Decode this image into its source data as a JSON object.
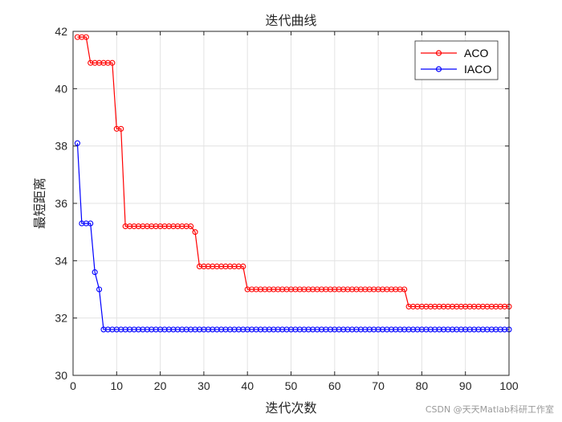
{
  "chart_data": {
    "type": "line",
    "title": "迭代曲线",
    "xlabel": "迭代次数",
    "ylabel": "最短距离",
    "xlim": [
      0,
      100
    ],
    "ylim": [
      30,
      42
    ],
    "xticks": [
      0,
      10,
      20,
      30,
      40,
      50,
      60,
      70,
      80,
      90,
      100
    ],
    "yticks": [
      30,
      32,
      34,
      36,
      38,
      40,
      42
    ],
    "grid": true,
    "legend_position": "top-right",
    "marker": "circle",
    "series": [
      {
        "name": "ACO",
        "color": "#ff0000",
        "segments": [
          {
            "from": 1,
            "to": 3,
            "y": 41.8
          },
          {
            "from": 4,
            "to": 9,
            "y": 40.9
          },
          {
            "from": 10,
            "to": 11,
            "y": 38.6
          },
          {
            "from": 12,
            "to": 27,
            "y": 35.2
          },
          {
            "from": 28,
            "to": 28,
            "y": 35.0
          },
          {
            "from": 29,
            "to": 39,
            "y": 33.8
          },
          {
            "from": 40,
            "to": 76,
            "y": 33.0
          },
          {
            "from": 77,
            "to": 100,
            "y": 32.4
          }
        ]
      },
      {
        "name": "IACO",
        "color": "#0000ff",
        "segments": [
          {
            "from": 1,
            "to": 1,
            "y": 38.1
          },
          {
            "from": 2,
            "to": 4,
            "y": 35.3
          },
          {
            "from": 5,
            "to": 5,
            "y": 33.6
          },
          {
            "from": 6,
            "to": 6,
            "y": 33.0
          },
          {
            "from": 7,
            "to": 100,
            "y": 31.6
          }
        ]
      }
    ]
  },
  "watermark": "CSDN @天天Matlab科研工作室"
}
